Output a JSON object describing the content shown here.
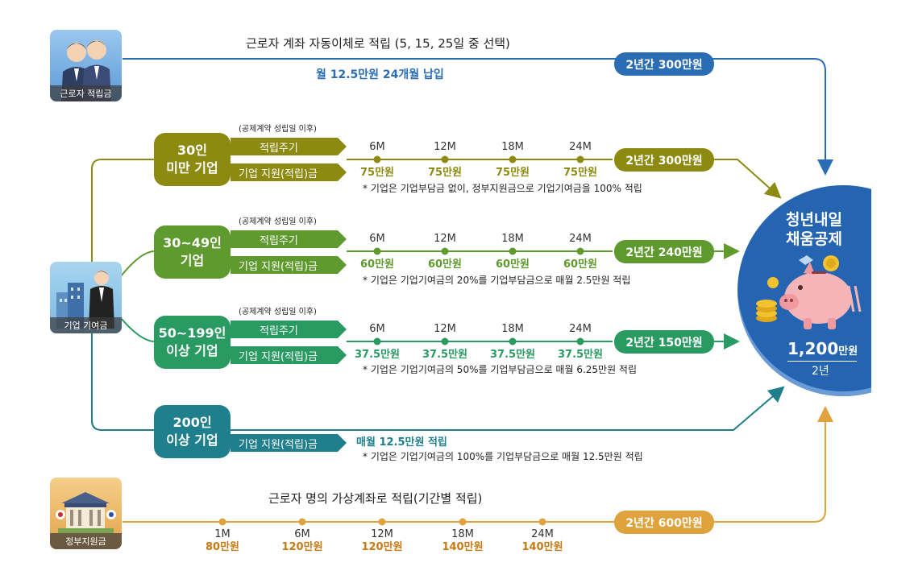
{
  "worker": {
    "icon_label": "근로자 적립금",
    "description": "근로자 계좌 자동이체로 적립 (5, 15, 25일 중 선택)",
    "sub_description": "월 12.5만원 24개월 납입",
    "total": "2년간 300만원"
  },
  "company": {
    "icon_label": "기업 기여금",
    "tiers": [
      {
        "name_line1": "30인",
        "name_line2": "미만 기업",
        "contract_note": "(공제계약 성립일 이후)",
        "cycle_label": "적립주기",
        "support_label": "기업 지원(적립)금",
        "months": [
          "6M",
          "12M",
          "18M",
          "24M"
        ],
        "amounts": [
          "75만원",
          "75만원",
          "75만원",
          "75만원"
        ],
        "total": "2년간 300만원",
        "footnote": "* 기업은 기업부담금 없이, 정부지원금으로 기업기여금을 100% 적립"
      },
      {
        "name_line1": "30~49인",
        "name_line2": "기업",
        "contract_note": "(공제계약 성립일 이후)",
        "cycle_label": "적립주기",
        "support_label": "기업 지원(적립)금",
        "months": [
          "6M",
          "12M",
          "18M",
          "24M"
        ],
        "amounts": [
          "60만원",
          "60만원",
          "60만원",
          "60만원"
        ],
        "total": "2년간 240만원",
        "footnote": "* 기업은 기업기여금의 20%를 기업부담금으로 매월 2.5만원 적립"
      },
      {
        "name_line1": "50~199인",
        "name_line2": "이상 기업",
        "contract_note": "(공제계약 성립일 이후)",
        "cycle_label": "적립주기",
        "support_label": "기업 지원(적립)금",
        "months": [
          "6M",
          "12M",
          "18M",
          "24M"
        ],
        "amounts": [
          "37.5만원",
          "37.5만원",
          "37.5만원",
          "37.5만원"
        ],
        "total": "2년간 150만원",
        "footnote": "* 기업은 기업기여금의 50%를 기업부담금으로 매월 6.25만원 적립"
      },
      {
        "name_line1": "200인",
        "name_line2": "이상 기업",
        "support_label": "기업 지원(적립)금",
        "monthly": "매월 12.5만원 적립",
        "footnote": "* 기업은 기업기여금의 100%를 기업부담금으로 매월 12.5만원 적립"
      }
    ]
  },
  "government": {
    "icon_label": "정부지원금",
    "description": "근로자 명의 가상계좌로 적립(기간별 적립)",
    "months": [
      "1M",
      "6M",
      "12M",
      "18M",
      "24M"
    ],
    "amounts": [
      "80만원",
      "120만원",
      "120만원",
      "140만원",
      "140만원"
    ],
    "total": "2년간 600만원"
  },
  "result": {
    "title_line1": "청년내일",
    "title_line2": "채움공제",
    "amount": "1,200",
    "amount_unit": "만원",
    "period": "2년"
  },
  "colors": {
    "worker_blue": "#2a6db5",
    "tier1_olive": "#8c8a10",
    "tier2_green": "#5f9a2e",
    "tier3_green": "#2a9a63",
    "tier4_teal": "#1f7f8c",
    "gov_orange": "#e0a23c",
    "gov_text": "#c77a12"
  }
}
